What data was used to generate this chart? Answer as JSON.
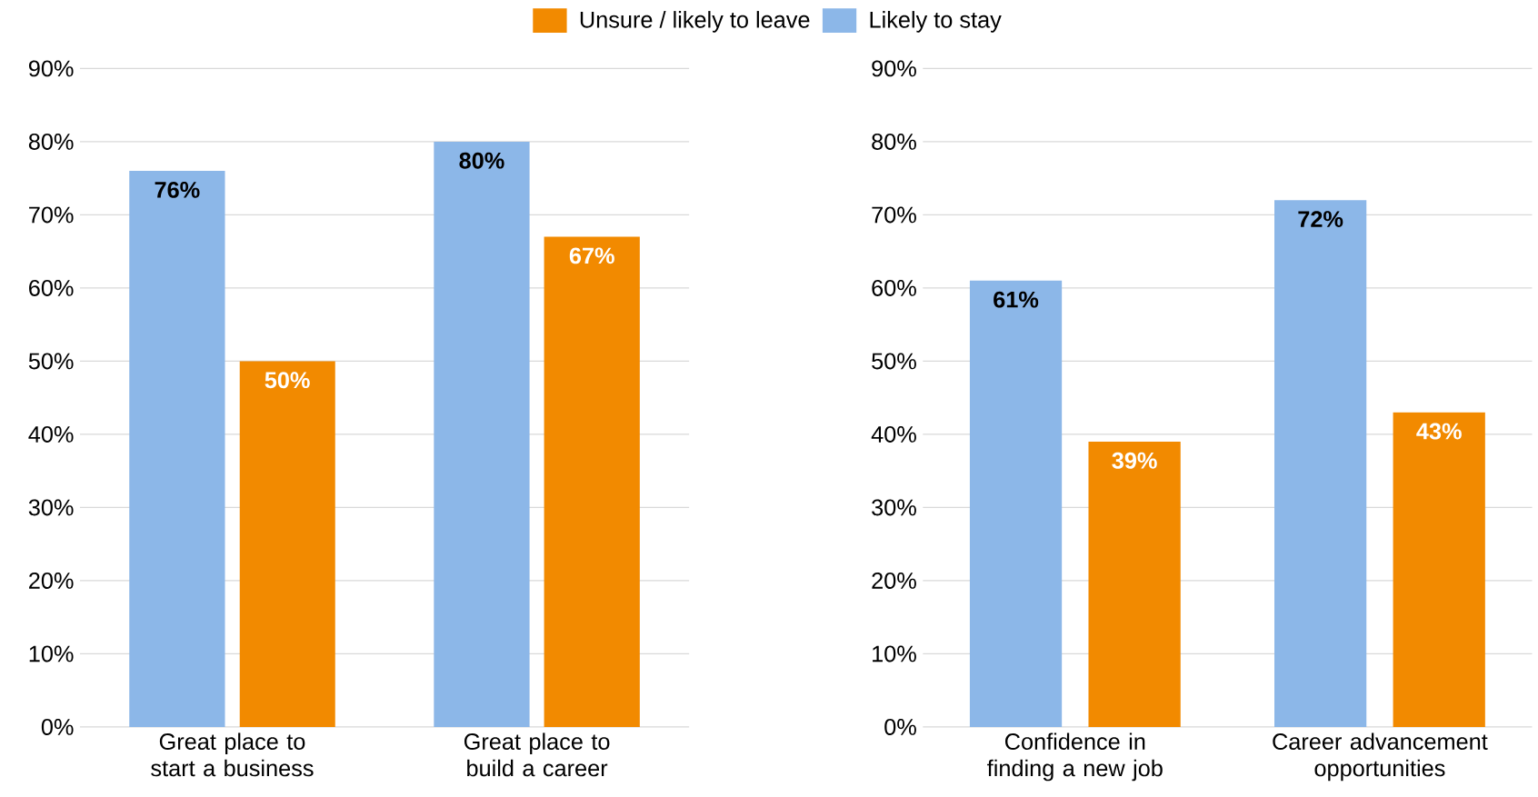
{
  "chart_data": [
    {
      "type": "bar",
      "categories": [
        "Great place to start a business",
        "Great place to build a career"
      ],
      "series": [
        {
          "name": "Likely to stay",
          "color": "#8cb7e8",
          "values": [
            76,
            80
          ],
          "value_labels": [
            "76%",
            "80%"
          ]
        },
        {
          "name": "Unsure / likely to leave",
          "color": "#f28a00",
          "values": [
            50,
            67
          ],
          "value_labels": [
            "50%",
            "67%"
          ]
        }
      ],
      "ylim": [
        0,
        90
      ],
      "yticks": [
        {
          "value": 0,
          "label": "0%"
        },
        {
          "value": 10,
          "label": "10%"
        },
        {
          "value": 20,
          "label": "20%"
        },
        {
          "value": 30,
          "label": "30%"
        },
        {
          "value": 40,
          "label": "40%"
        },
        {
          "value": 50,
          "label": "50%"
        },
        {
          "value": 60,
          "label": "60%"
        },
        {
          "value": 70,
          "label": "70%"
        },
        {
          "value": 80,
          "label": "80%"
        },
        {
          "value": 90,
          "label": "90%"
        }
      ],
      "grid": "y",
      "legend": "top"
    },
    {
      "type": "bar",
      "categories": [
        "Confidence in finding a new job",
        "Career advancement opportunities"
      ],
      "series": [
        {
          "color": "#8cb7e8",
          "values": [
            61,
            72
          ],
          "value_labels": [
            "61%",
            "72%"
          ]
        },
        {
          "color": "#f28a00",
          "values": [
            39,
            43
          ],
          "value_labels": [
            "39%",
            "43%"
          ]
        }
      ],
      "ylim": [
        0,
        90
      ],
      "yticks": [
        {
          "value": 0,
          "label": "0%"
        },
        {
          "value": 10,
          "label": "10%"
        },
        {
          "value": 20,
          "label": "20%"
        },
        {
          "value": 30,
          "label": "30%"
        },
        {
          "value": 40,
          "label": "40%"
        },
        {
          "value": 50,
          "label": "50%"
        },
        {
          "value": 60,
          "label": "60%"
        },
        {
          "value": 70,
          "label": "70%"
        },
        {
          "value": 80,
          "label": "80%"
        },
        {
          "value": 90,
          "label": "90%"
        }
      ],
      "grid": "y"
    }
  ]
}
